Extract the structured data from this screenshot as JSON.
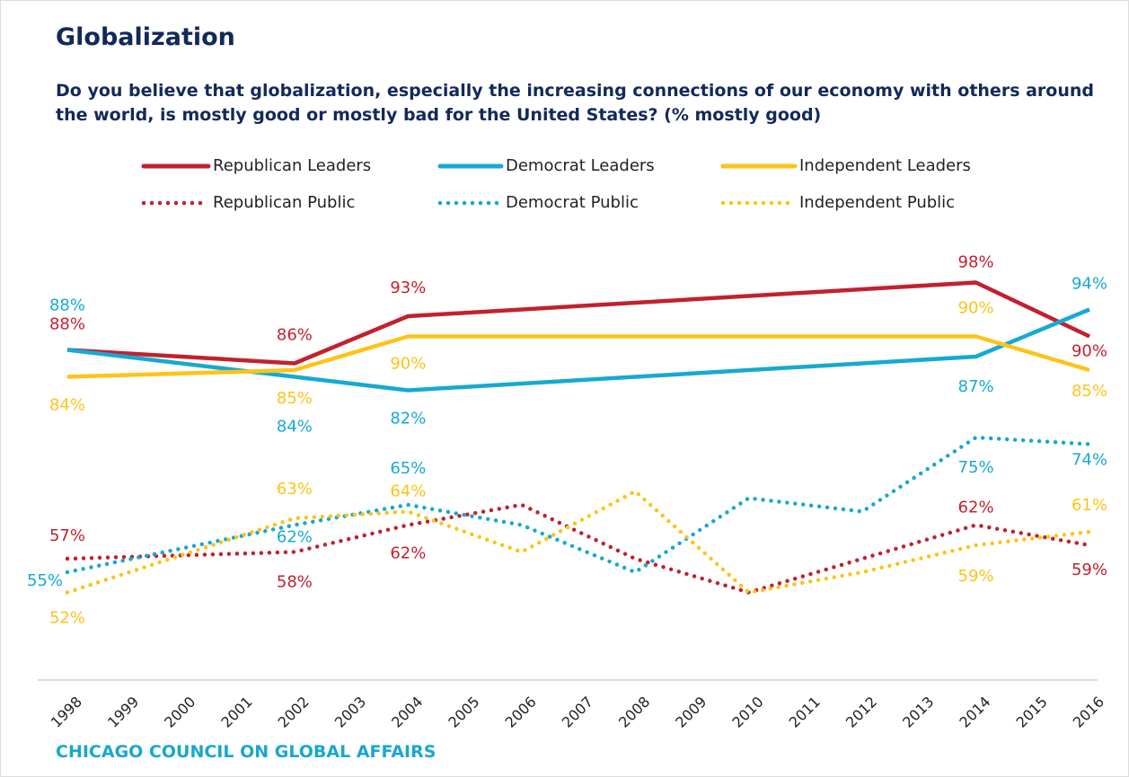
{
  "chart_data": {
    "type": "line",
    "title": "Globalization",
    "subtitle": "Do you believe that globalization, especially the increasing connections of our economy with others around the world, is mostly good or mostly bad for the United States? (% mostly good)",
    "source": "CHICAGO COUNCIL ON GLOBAL AFFAIRS",
    "xlim": [
      1998,
      2016
    ],
    "xticks": [
      1998,
      1999,
      2000,
      2001,
      2002,
      2003,
      2004,
      2005,
      2006,
      2007,
      2008,
      2009,
      2010,
      2011,
      2012,
      2013,
      2014,
      2015,
      2016
    ],
    "series": [
      {
        "name": "Republican Leaders",
        "color": "#c1212f",
        "style": "solid",
        "x": [
          1998,
          2002,
          2004,
          2014,
          2016
        ],
        "values": [
          88,
          86,
          93,
          98,
          90
        ],
        "value_labels": [
          "88%",
          "86%",
          "93%",
          "98%",
          "90%"
        ]
      },
      {
        "name": "Democrat Leaders",
        "color": "#16a9d2",
        "style": "solid",
        "x": [
          1998,
          2002,
          2004,
          2014,
          2016
        ],
        "values": [
          88,
          84,
          82,
          87,
          94
        ],
        "value_labels": [
          "88%",
          "84%",
          "82%",
          "87%",
          "94%"
        ]
      },
      {
        "name": "Independent Leaders",
        "color": "#fcc419",
        "style": "solid",
        "x": [
          1998,
          2002,
          2004,
          2014,
          2016
        ],
        "values": [
          84,
          85,
          90,
          90,
          85
        ],
        "value_labels": [
          "84%",
          "85%",
          "90%",
          "90%",
          "85%"
        ]
      },
      {
        "name": "Republican Public",
        "color": "#c1212f",
        "style": "dotted",
        "x": [
          1998,
          2002,
          2004,
          2006,
          2008,
          2010,
          2012,
          2014,
          2016
        ],
        "values": [
          57,
          58,
          62,
          65,
          57,
          52,
          57,
          62,
          59
        ],
        "value_labels": [
          "57%",
          "58%",
          "62%",
          null,
          null,
          null,
          null,
          "62%",
          "59%"
        ]
      },
      {
        "name": "Democrat Public",
        "color": "#16a9d2",
        "style": "dotted",
        "x": [
          1998,
          2002,
          2004,
          2006,
          2008,
          2010,
          2012,
          2014,
          2016
        ],
        "values": [
          55,
          62,
          65,
          62,
          55,
          66,
          64,
          75,
          74
        ],
        "value_labels": [
          "55%",
          "62%",
          "65%",
          null,
          null,
          null,
          null,
          "75%",
          "74%"
        ]
      },
      {
        "name": "Independent Public",
        "color": "#fcc419",
        "style": "dotted",
        "x": [
          1998,
          2002,
          2004,
          2006,
          2008,
          2010,
          2012,
          2014,
          2016
        ],
        "values": [
          52,
          63,
          64,
          58,
          67,
          52,
          55,
          59,
          61
        ],
        "value_labels": [
          "52%",
          "63%",
          "64%",
          null,
          null,
          null,
          null,
          "59%",
          "61%"
        ]
      }
    ]
  }
}
